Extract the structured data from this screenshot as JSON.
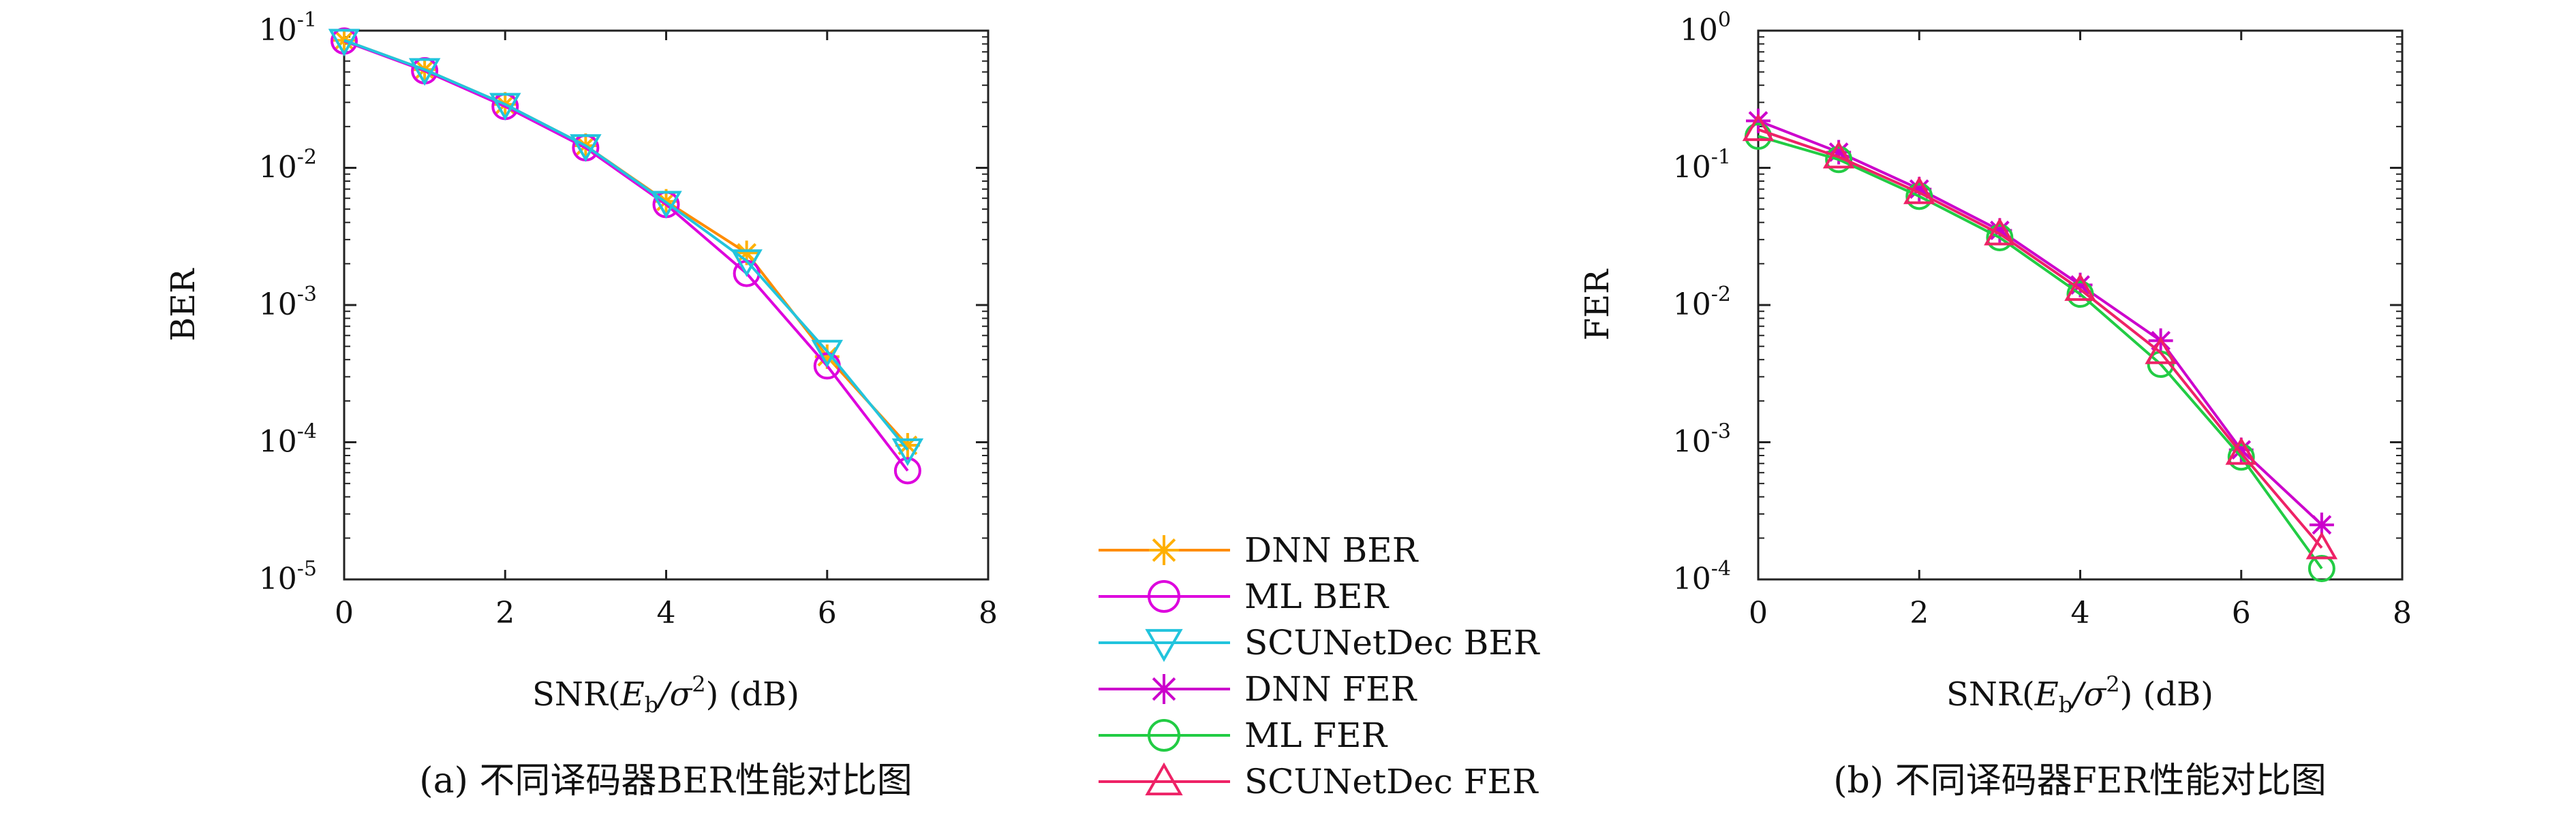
{
  "chart_data": [
    {
      "type": "line",
      "caption": "(a) 不同译码器BER性能对比图",
      "ylabel": "BER",
      "xlabel": "SNR(E_b/σ²) (dB)",
      "xlabel_parts": {
        "pre": "SNR(",
        "E": "E",
        "sub": "b",
        "mid": "/σ",
        "sup": "2",
        "post": ") (dB)"
      },
      "x_ticks": [
        "0",
        "2",
        "4",
        "6",
        "8"
      ],
      "y_tick_base": "10",
      "y_tick_exponents": [
        "-5",
        "-4",
        "-3",
        "-2",
        "-1"
      ],
      "xlim": [
        0,
        8
      ],
      "ylim_log10": [
        -5,
        -1
      ],
      "y_scale": "log",
      "grid": false,
      "x": [
        0,
        1,
        2,
        3,
        4,
        5,
        6,
        7
      ],
      "series": [
        {
          "name": "DNN BER",
          "marker": "asterisk",
          "color": "#ff8c00",
          "markerColor": "#ffb000",
          "values": [
            0.085,
            0.052,
            0.029,
            0.0145,
            0.0057,
            0.0024,
            0.00042,
            9.5e-05
          ]
        },
        {
          "name": "ML BER",
          "marker": "circle",
          "color": "#dd00dd",
          "values": [
            0.084,
            0.051,
            0.028,
            0.014,
            0.0054,
            0.0017,
            0.00036,
            6.2e-05
          ]
        },
        {
          "name": "SCUNetDec BER",
          "marker": "triangle-down",
          "color": "#22c4dd",
          "values": [
            0.085,
            0.052,
            0.029,
            0.0145,
            0.0056,
            0.0021,
            0.00046,
            8.8e-05
          ]
        }
      ]
    },
    {
      "type": "line",
      "caption": "(b) 不同译码器FER性能对比图",
      "ylabel": "FER",
      "xlabel": "SNR(E_b/σ²) (dB)",
      "xlabel_parts": {
        "pre": "SNR(",
        "E": "E",
        "sub": "b",
        "mid": "/σ",
        "sup": "2",
        "post": ") (dB)"
      },
      "x_ticks": [
        "0",
        "2",
        "4",
        "6",
        "8"
      ],
      "y_tick_base": "10",
      "y_tick_exponents": [
        "-4",
        "-3",
        "-2",
        "-1",
        "0"
      ],
      "xlim": [
        0,
        8
      ],
      "ylim_log10": [
        -4,
        0
      ],
      "y_scale": "log",
      "grid": false,
      "x": [
        0,
        1,
        2,
        3,
        4,
        5,
        6,
        7
      ],
      "series": [
        {
          "name": "DNN FER",
          "marker": "asterisk",
          "color": "#cc00cc",
          "values": [
            0.22,
            0.13,
            0.07,
            0.035,
            0.014,
            0.0055,
            0.00088,
            0.00025
          ]
        },
        {
          "name": "ML FER",
          "marker": "circle",
          "color": "#22cc44",
          "values": [
            0.17,
            0.115,
            0.062,
            0.031,
            0.012,
            0.0037,
            0.00078,
            0.00012
          ]
        },
        {
          "name": "SCUNetDec FER",
          "marker": "triangle-up",
          "color": "#ee2266",
          "values": [
            0.19,
            0.12,
            0.066,
            0.033,
            0.013,
            0.0045,
            0.00083,
            0.00017
          ]
        }
      ]
    }
  ],
  "legend": {
    "placement": "bottom-center",
    "entries": [
      {
        "name": "DNN BER",
        "marker": "asterisk",
        "color": "#ff8c00",
        "markerColor": "#ffb000"
      },
      {
        "name": "ML BER",
        "marker": "circle",
        "color": "#dd00dd"
      },
      {
        "name": "SCUNetDec BER",
        "marker": "triangle-down",
        "color": "#22c4dd"
      },
      {
        "name": "DNN FER",
        "marker": "asterisk",
        "color": "#cc00cc"
      },
      {
        "name": "ML FER",
        "marker": "circle",
        "color": "#22cc44"
      },
      {
        "name": "SCUNetDec FER",
        "marker": "triangle-up",
        "color": "#ee2266"
      }
    ]
  }
}
